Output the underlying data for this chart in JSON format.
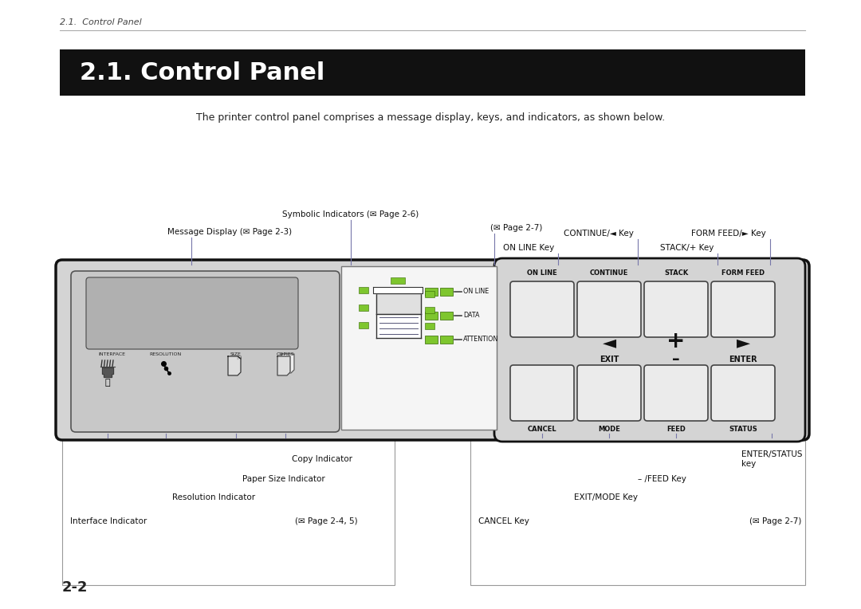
{
  "bg_color": "#ffffff",
  "header_bg": "#111111",
  "header_fg": "#ffffff",
  "header_text": "2.1. Control Panel",
  "section_label": "2.1.  Control Panel",
  "subtitle": "The printer control panel comprises a message display, keys, and indicators, as shown below.",
  "page_number": "2-2",
  "green_color": "#7ec62e",
  "panel_bg": "#d4d4d4",
  "panel_border": "#111111",
  "sub_panel_bg": "#c8c8c8",
  "screen_bg": "#b0b0b0",
  "mid_panel_bg": "#f5f5f5",
  "mid_panel_border": "#777777",
  "key_panel_bg": "#d4d4d4",
  "key_panel_border": "#111111",
  "button_bg": "#ebebeb",
  "button_border": "#444444",
  "anno_box_border": "#999999",
  "anno_color": "#111111",
  "line_color": "#7777aa"
}
